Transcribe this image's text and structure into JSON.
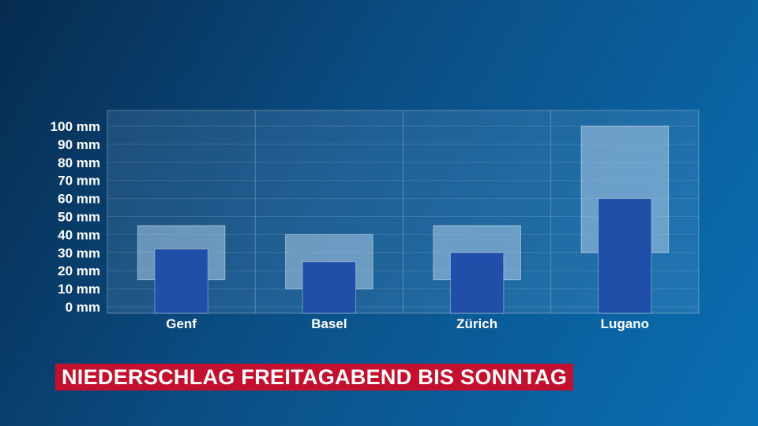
{
  "caption": "NIEDERSCHLAG FREITAGABEND BIS SONNTAG",
  "colors": {
    "bar": "#1f4fa8",
    "range_box": "#a9cbe6",
    "plot_bg": "#7fb4dc",
    "caption_bg": "#c3102e"
  },
  "chart_data": {
    "type": "bar",
    "categories": [
      "Genf",
      "Basel",
      "Zürich",
      "Lugano"
    ],
    "values": [
      32,
      25,
      30,
      60
    ],
    "ranges": [
      [
        15,
        45
      ],
      [
        10,
        40
      ],
      [
        15,
        45
      ],
      [
        30,
        100
      ]
    ],
    "ylim": [
      0,
      110
    ],
    "yticks": [
      0,
      10,
      20,
      30,
      40,
      50,
      60,
      70,
      80,
      90,
      100
    ],
    "ytick_labels": [
      "0 mm",
      "10 mm",
      "20 mm",
      "30 mm",
      "40 mm",
      "50 mm",
      "60 mm",
      "70 mm",
      "80 mm",
      "90 mm",
      "100 mm"
    ],
    "grid": true
  }
}
